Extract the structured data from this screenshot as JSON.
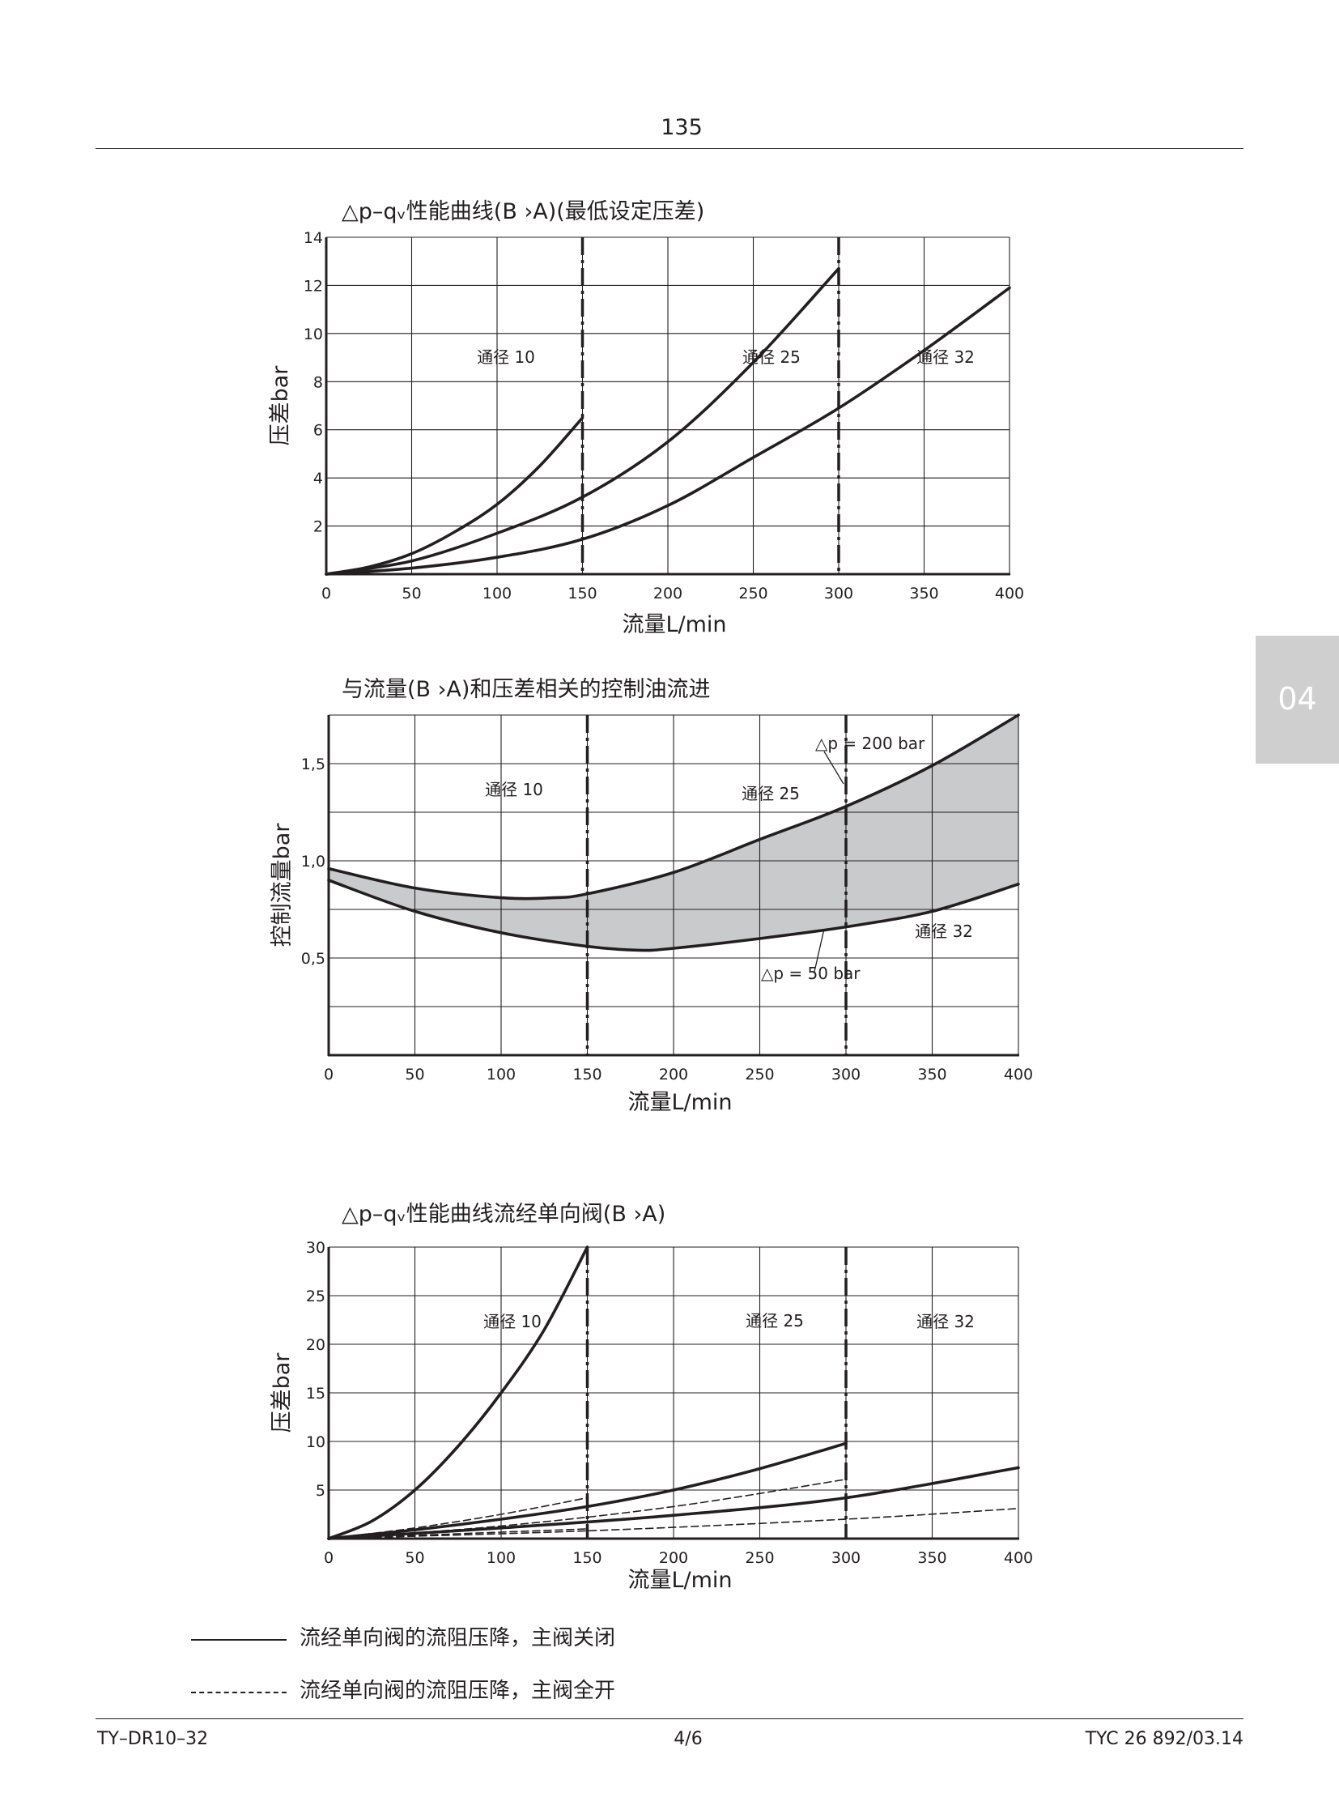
{
  "page": {
    "number": "135",
    "tab": "04",
    "footer_left": "TY–DR10–32",
    "footer_mid": "4/6",
    "footer_right": "TYC 26 892/03.14"
  },
  "legend": {
    "solid": "流经单向阀的流阻压降，主阀关闭",
    "dashed": "流经单向阀的流阻压降，主阀全开"
  },
  "chart_data": [
    {
      "type": "line",
      "title": "△p–qᵥ性能曲线(B  ›A)(最低设定压差)",
      "xlabel": "流量L/min",
      "ylabel": "压差bar",
      "xlim": [
        0,
        400
      ],
      "ylim": [
        0,
        14
      ],
      "xticks": [
        "0",
        "50",
        "100",
        "150",
        "200",
        "250",
        "300",
        "350",
        "400"
      ],
      "yticks": [
        "2",
        "4",
        "6",
        "8",
        "10",
        "12",
        "14"
      ],
      "grid": true,
      "limit_lines": [
        150,
        300
      ],
      "annotations": [
        "通径 10",
        "通径 25",
        "通径 32"
      ],
      "series": [
        {
          "x": [
            0,
            25,
            50,
            75,
            100,
            125,
            150
          ],
          "y": [
            0,
            0.3,
            0.85,
            1.75,
            2.9,
            4.5,
            6.5
          ]
        },
        {
          "x": [
            0,
            50,
            100,
            150,
            200,
            250,
            300
          ],
          "y": [
            0,
            0.55,
            1.7,
            3.2,
            5.5,
            8.8,
            12.7
          ]
        },
        {
          "x": [
            0,
            50,
            100,
            150,
            200,
            250,
            300,
            350,
            400
          ],
          "y": [
            0,
            0.25,
            0.7,
            1.45,
            2.85,
            4.85,
            6.9,
            9.3,
            11.9
          ]
        }
      ]
    },
    {
      "type": "area",
      "title": "与流量(B  ›A)和压差相关的控制油流进",
      "xlabel": "流量L/min",
      "ylabel": "控制流量bar",
      "xlim": [
        0,
        400
      ],
      "ylim": [
        0,
        1.75
      ],
      "xticks": [
        "0",
        "50",
        "100",
        "150",
        "200",
        "250",
        "300",
        "350",
        "400"
      ],
      "yticks": [
        "0,5",
        "1,0",
        "1,5"
      ],
      "grid": true,
      "limit_lines": [
        150,
        300
      ],
      "annotations": [
        "通径 10",
        "通径 25",
        "通径 32",
        "△p = 200 bar",
        "△p = 50 bar"
      ],
      "series": [
        {
          "x": [
            0,
            50,
            100,
            130,
            150,
            200,
            250,
            300,
            350,
            400
          ],
          "y": [
            0.96,
            0.86,
            0.81,
            0.81,
            0.83,
            0.94,
            1.11,
            1.28,
            1.49,
            1.75
          ]
        },
        {
          "x": [
            0,
            50,
            100,
            150,
            180,
            200,
            250,
            300,
            350,
            400
          ],
          "y": [
            0.9,
            0.74,
            0.63,
            0.56,
            0.54,
            0.55,
            0.6,
            0.66,
            0.74,
            0.88
          ]
        }
      ]
    },
    {
      "type": "line",
      "title": "△p–qᵥ性能曲线流经单向阀(B  ›A)",
      "xlabel": "流量L/min",
      "ylabel": "压差bar",
      "xlim": [
        0,
        400
      ],
      "ylim": [
        0,
        30
      ],
      "xticks": [
        "0",
        "50",
        "100",
        "150",
        "200",
        "250",
        "300",
        "350",
        "400"
      ],
      "yticks": [
        "5",
        "10",
        "15",
        "20",
        "25",
        "30"
      ],
      "grid": true,
      "limit_lines": [
        150,
        300
      ],
      "annotations": [
        "通径 10",
        "通径 25",
        "通径 32"
      ],
      "series": [
        {
          "style": "solid",
          "x": [
            0,
            25,
            50,
            75,
            100,
            125,
            150
          ],
          "y": [
            0,
            1.8,
            5,
            9.5,
            15,
            21.5,
            30
          ]
        },
        {
          "style": "solid",
          "x": [
            0,
            50,
            100,
            150,
            200,
            250,
            300
          ],
          "y": [
            0,
            0.9,
            2,
            3.3,
            5,
            7.2,
            9.8
          ]
        },
        {
          "style": "solid",
          "x": [
            0,
            100,
            200,
            300,
            400
          ],
          "y": [
            0,
            1.1,
            2.4,
            4.2,
            7.3
          ]
        },
        {
          "style": "dashed",
          "x": [
            0,
            50,
            100,
            150
          ],
          "y": [
            0,
            1.1,
            2.5,
            4.2
          ]
        },
        {
          "style": "dashed",
          "x": [
            0,
            100,
            200,
            300
          ],
          "y": [
            0,
            1.3,
            3.3,
            6.1
          ]
        },
        {
          "style": "dashed",
          "x": [
            0,
            150,
            300,
            400
          ],
          "y": [
            0,
            0.8,
            2.0,
            3.1
          ]
        },
        {
          "style": "dashed",
          "x": [
            0,
            150
          ],
          "y": [
            0,
            1.0
          ]
        }
      ]
    }
  ]
}
